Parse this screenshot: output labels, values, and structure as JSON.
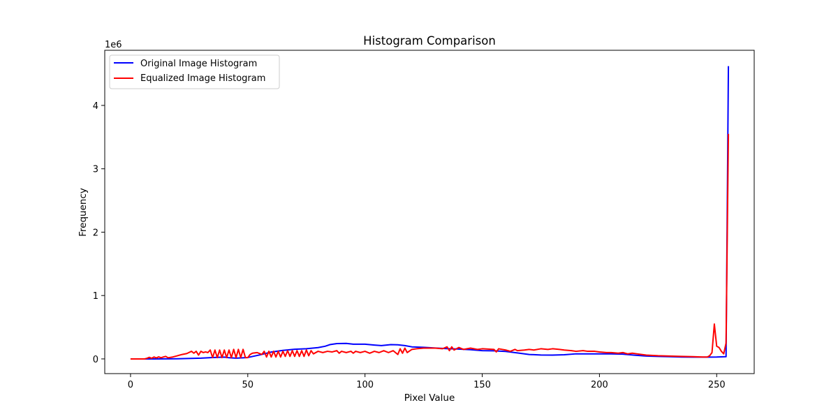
{
  "chart_data": {
    "type": "line",
    "title": "Histogram Comparison",
    "xlabel": "Pixel Value",
    "ylabel": "Frequency",
    "y_offset_label": "1e6",
    "xlim": [
      -11,
      266
    ],
    "ylim": [
      -0.232,
      4.87
    ],
    "x_ticks": [
      0,
      50,
      100,
      150,
      200,
      250
    ],
    "y_ticks": [
      0,
      1,
      2,
      3,
      4
    ],
    "grid": false,
    "legend_position": "upper left",
    "series": [
      {
        "name": "Original Image Histogram",
        "color": "#0000ff",
        "points": [
          [
            0,
            0
          ],
          [
            10,
            0
          ],
          [
            20,
            0.002
          ],
          [
            30,
            0.012
          ],
          [
            35,
            0.022
          ],
          [
            40,
            0.028
          ],
          [
            42,
            0.018
          ],
          [
            45,
            0.012
          ],
          [
            50,
            0.022
          ],
          [
            55,
            0.062
          ],
          [
            60,
            0.108
          ],
          [
            65,
            0.135
          ],
          [
            70,
            0.152
          ],
          [
            75,
            0.16
          ],
          [
            80,
            0.178
          ],
          [
            83,
            0.2
          ],
          [
            85,
            0.225
          ],
          [
            88,
            0.242
          ],
          [
            92,
            0.245
          ],
          [
            95,
            0.232
          ],
          [
            100,
            0.232
          ],
          [
            104,
            0.218
          ],
          [
            107,
            0.21
          ],
          [
            111,
            0.225
          ],
          [
            114,
            0.222
          ],
          [
            117,
            0.21
          ],
          [
            120,
            0.19
          ],
          [
            125,
            0.182
          ],
          [
            130,
            0.172
          ],
          [
            135,
            0.162
          ],
          [
            140,
            0.155
          ],
          [
            145,
            0.145
          ],
          [
            150,
            0.13
          ],
          [
            155,
            0.128
          ],
          [
            160,
            0.118
          ],
          [
            165,
            0.095
          ],
          [
            170,
            0.07
          ],
          [
            175,
            0.062
          ],
          [
            180,
            0.06
          ],
          [
            185,
            0.066
          ],
          [
            190,
            0.08
          ],
          [
            195,
            0.08
          ],
          [
            200,
            0.08
          ],
          [
            205,
            0.08
          ],
          [
            210,
            0.075
          ],
          [
            215,
            0.058
          ],
          [
            220,
            0.045
          ],
          [
            225,
            0.04
          ],
          [
            230,
            0.035
          ],
          [
            235,
            0.03
          ],
          [
            240,
            0.028
          ],
          [
            245,
            0.028
          ],
          [
            250,
            0.03
          ],
          [
            254,
            0.035
          ],
          [
            255,
            4.62
          ]
        ]
      },
      {
        "name": "Equalized Image Histogram",
        "color": "#ff0000",
        "points": [
          [
            0,
            0
          ],
          [
            6,
            0
          ],
          [
            7,
            0.01
          ],
          [
            8,
            0.025
          ],
          [
            9,
            0.01
          ],
          [
            10,
            0.03
          ],
          [
            11,
            0.015
          ],
          [
            12,
            0.032
          ],
          [
            13,
            0.018
          ],
          [
            14,
            0.03
          ],
          [
            15,
            0.04
          ],
          [
            16,
            0.018
          ],
          [
            18,
            0.03
          ],
          [
            20,
            0.05
          ],
          [
            22,
            0.07
          ],
          [
            24,
            0.085
          ],
          [
            26,
            0.12
          ],
          [
            27,
            0.09
          ],
          [
            28,
            0.12
          ],
          [
            29,
            0.06
          ],
          [
            30,
            0.12
          ],
          [
            31,
            0.1
          ],
          [
            32,
            0.11
          ],
          [
            33,
            0.1
          ],
          [
            34,
            0.14
          ],
          [
            35,
            0.02
          ],
          [
            36,
            0.14
          ],
          [
            37,
            0.02
          ],
          [
            38,
            0.14
          ],
          [
            39,
            0.02
          ],
          [
            40,
            0.14
          ],
          [
            41,
            0.02
          ],
          [
            42,
            0.14
          ],
          [
            43,
            0.02
          ],
          [
            44,
            0.15
          ],
          [
            45,
            0.02
          ],
          [
            46,
            0.15
          ],
          [
            47,
            0.02
          ],
          [
            48,
            0.15
          ],
          [
            49,
            0.02
          ],
          [
            50,
            0.02
          ],
          [
            51,
            0.07
          ],
          [
            52,
            0.09
          ],
          [
            54,
            0.1
          ],
          [
            56,
            0.07
          ],
          [
            57,
            0.12
          ],
          [
            58,
            0.03
          ],
          [
            59,
            0.12
          ],
          [
            60,
            0.03
          ],
          [
            61,
            0.12
          ],
          [
            62,
            0.03
          ],
          [
            63,
            0.12
          ],
          [
            64,
            0.03
          ],
          [
            65,
            0.12
          ],
          [
            66,
            0.04
          ],
          [
            67,
            0.13
          ],
          [
            68,
            0.04
          ],
          [
            69,
            0.13
          ],
          [
            70,
            0.04
          ],
          [
            71,
            0.13
          ],
          [
            72,
            0.04
          ],
          [
            73,
            0.13
          ],
          [
            74,
            0.04
          ],
          [
            75,
            0.14
          ],
          [
            76,
            0.05
          ],
          [
            77,
            0.13
          ],
          [
            78,
            0.08
          ],
          [
            80,
            0.12
          ],
          [
            82,
            0.1
          ],
          [
            84,
            0.12
          ],
          [
            86,
            0.11
          ],
          [
            88,
            0.13
          ],
          [
            89,
            0.09
          ],
          [
            90,
            0.12
          ],
          [
            92,
            0.1
          ],
          [
            94,
            0.12
          ],
          [
            95,
            0.09
          ],
          [
            96,
            0.12
          ],
          [
            98,
            0.1
          ],
          [
            100,
            0.12
          ],
          [
            102,
            0.09
          ],
          [
            104,
            0.12
          ],
          [
            106,
            0.1
          ],
          [
            108,
            0.13
          ],
          [
            110,
            0.1
          ],
          [
            112,
            0.13
          ],
          [
            114,
            0.07
          ],
          [
            115,
            0.16
          ],
          [
            116,
            0.09
          ],
          [
            117,
            0.17
          ],
          [
            118,
            0.1
          ],
          [
            120,
            0.15
          ],
          [
            122,
            0.16
          ],
          [
            125,
            0.17
          ],
          [
            130,
            0.17
          ],
          [
            133,
            0.16
          ],
          [
            135,
            0.19
          ],
          [
            136,
            0.13
          ],
          [
            137,
            0.19
          ],
          [
            138,
            0.14
          ],
          [
            140,
            0.18
          ],
          [
            142,
            0.15
          ],
          [
            145,
            0.17
          ],
          [
            148,
            0.15
          ],
          [
            150,
            0.16
          ],
          [
            155,
            0.15
          ],
          [
            156,
            0.11
          ],
          [
            157,
            0.16
          ],
          [
            160,
            0.14
          ],
          [
            162,
            0.12
          ],
          [
            164,
            0.15
          ],
          [
            165,
            0.13
          ],
          [
            168,
            0.14
          ],
          [
            170,
            0.15
          ],
          [
            172,
            0.14
          ],
          [
            175,
            0.16
          ],
          [
            178,
            0.15
          ],
          [
            180,
            0.16
          ],
          [
            183,
            0.15
          ],
          [
            185,
            0.14
          ],
          [
            188,
            0.13
          ],
          [
            190,
            0.12
          ],
          [
            193,
            0.13
          ],
          [
            195,
            0.12
          ],
          [
            198,
            0.12
          ],
          [
            200,
            0.11
          ],
          [
            203,
            0.1
          ],
          [
            205,
            0.1
          ],
          [
            208,
            0.09
          ],
          [
            210,
            0.1
          ],
          [
            212,
            0.08
          ],
          [
            214,
            0.09
          ],
          [
            216,
            0.08
          ],
          [
            218,
            0.07
          ],
          [
            220,
            0.06
          ],
          [
            225,
            0.05
          ],
          [
            230,
            0.045
          ],
          [
            235,
            0.04
          ],
          [
            240,
            0.035
          ],
          [
            244,
            0.03
          ],
          [
            246,
            0.03
          ],
          [
            247,
            0.05
          ],
          [
            248,
            0.1
          ],
          [
            249,
            0.55
          ],
          [
            250,
            0.2
          ],
          [
            251,
            0.18
          ],
          [
            252,
            0.12
          ],
          [
            253,
            0.08
          ],
          [
            254,
            0.25
          ],
          [
            255,
            3.55
          ]
        ]
      }
    ]
  }
}
